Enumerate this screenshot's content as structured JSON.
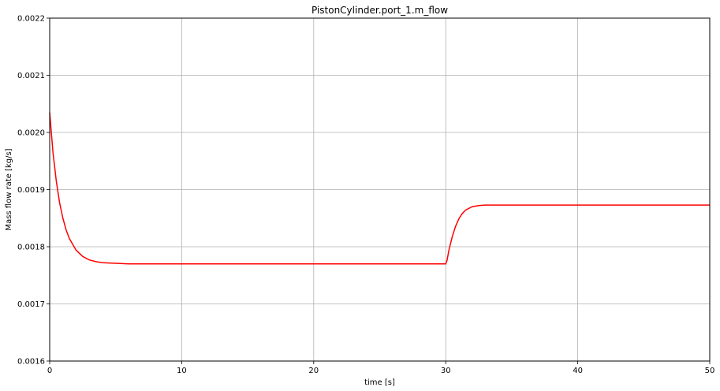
{
  "chart_data": {
    "type": "line",
    "title": "PistonCylinder.port_1.m_flow",
    "xlabel": "time [s]",
    "ylabel": "Mass flow rate [kg/s]",
    "xlim": [
      0,
      50
    ],
    "ylim": [
      0.0016,
      0.0022
    ],
    "xticks": [
      0,
      10,
      20,
      30,
      40,
      50
    ],
    "xtick_labels": [
      "0",
      "10",
      "20",
      "30",
      "40",
      "50"
    ],
    "yticks": [
      0.0016,
      0.0017,
      0.0018,
      0.0019,
      0.002,
      0.0021,
      0.0022
    ],
    "ytick_labels": [
      "0.0016",
      "0.0017",
      "0.0018",
      "0.0019",
      "0.0020",
      "0.0021",
      "0.0022"
    ],
    "grid": true,
    "colors": {
      "line": "#ff0000",
      "grid": "#b0b0b0",
      "axes": "#000000"
    },
    "series": [
      {
        "x": [
          0,
          0.25,
          0.5,
          0.75,
          1.0,
          1.25,
          1.5,
          2.0,
          2.5,
          3.0,
          3.5,
          4.0,
          5.0,
          6.0,
          10,
          15,
          20,
          25,
          29.9,
          30.0,
          30.1,
          30.25,
          30.5,
          30.75,
          31.0,
          31.25,
          31.5,
          32.0,
          32.5,
          33.0,
          34.0,
          35.0,
          40,
          45,
          50
        ],
        "y": [
          0.002035,
          0.001965,
          0.001915,
          0.001877,
          0.00185,
          0.001829,
          0.001814,
          0.001794,
          0.001783,
          0.001777,
          0.001774,
          0.001772,
          0.001771,
          0.00177,
          0.00177,
          0.00177,
          0.00177,
          0.00177,
          0.00177,
          0.00177,
          0.001776,
          0.001795,
          0.001818,
          0.001836,
          0.001849,
          0.001858,
          0.001864,
          0.00187,
          0.001872,
          0.001873,
          0.001873,
          0.001873,
          0.001873,
          0.001873,
          0.001873
        ]
      }
    ]
  }
}
